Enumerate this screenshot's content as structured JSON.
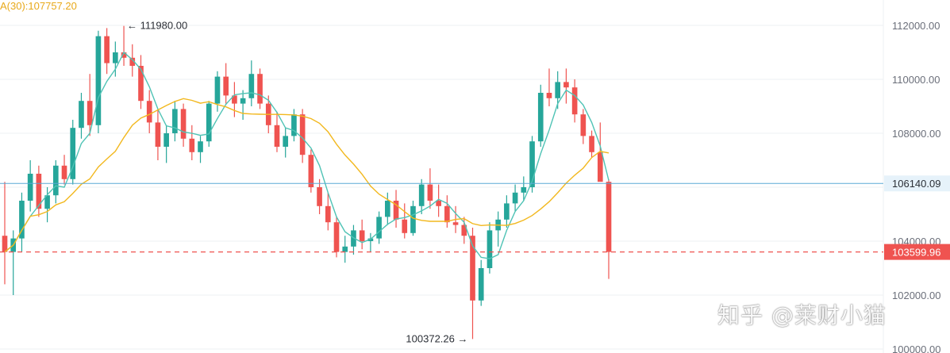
{
  "chart_data": {
    "type": "candlestick",
    "ma_label": "A(30):107757.20",
    "y_axis": {
      "ticks": [
        "112000.00",
        "110000.00",
        "108000.00",
        "106000.00",
        "104000.00",
        "102000.00",
        "100000.00"
      ],
      "tick_values": [
        112000,
        110000,
        108000,
        106000,
        104000,
        102000,
        100000
      ],
      "range": [
        100000,
        112800
      ]
    },
    "high_marker": "111980.00",
    "high_value": 111980,
    "low_marker": "100372.26",
    "low_value": 100372.26,
    "ref_line": {
      "label": "106140.09",
      "value": 106140.09
    },
    "last_price": {
      "label": "103599.96",
      "value": 103599.96
    },
    "colors": {
      "up": "#26a69a",
      "down": "#ef5350",
      "ma_fast": "#4fc3b5",
      "ma_slow": "#f2b81e",
      "ref_line": "#5aa9d6",
      "last_price": "#ef5350"
    },
    "grid": true,
    "candles_ohlc": [
      [
        104200,
        106200,
        102400,
        103600
      ],
      [
        103600,
        104400,
        102000,
        104100
      ],
      [
        104100,
        105800,
        103600,
        105500
      ],
      [
        105500,
        107000,
        105100,
        106500
      ],
      [
        106500,
        106800,
        104900,
        105200
      ],
      [
        105200,
        106000,
        104700,
        105700
      ],
      [
        105700,
        107000,
        105400,
        106800
      ],
      [
        106800,
        107200,
        106100,
        106300
      ],
      [
        106300,
        108500,
        106100,
        108200
      ],
      [
        108200,
        109500,
        107800,
        109200
      ],
      [
        109200,
        110200,
        107900,
        108300
      ],
      [
        108300,
        111800,
        108000,
        111600
      ],
      [
        111600,
        111900,
        110200,
        110600
      ],
      [
        110600,
        111400,
        110100,
        111000
      ],
      [
        111000,
        111980,
        110500,
        110800
      ],
      [
        110800,
        111300,
        110100,
        110500
      ],
      [
        110500,
        110900,
        108900,
        109200
      ],
      [
        109200,
        109600,
        108000,
        108400
      ],
      [
        108400,
        108900,
        107000,
        107500
      ],
      [
        107500,
        108300,
        106900,
        108000
      ],
      [
        108000,
        109200,
        107700,
        108900
      ],
      [
        108900,
        109100,
        107500,
        107800
      ],
      [
        107800,
        108300,
        107000,
        107300
      ],
      [
        107300,
        107900,
        106900,
        107700
      ],
      [
        107700,
        109200,
        107500,
        109100
      ],
      [
        109100,
        110300,
        108800,
        110100
      ],
      [
        110100,
        110600,
        109100,
        109400
      ],
      [
        109400,
        109900,
        108600,
        109100
      ],
      [
        109100,
        109600,
        108500,
        109300
      ],
      [
        109300,
        110700,
        109000,
        110200
      ],
      [
        110200,
        110400,
        108900,
        109100
      ],
      [
        109100,
        109400,
        108000,
        108300
      ],
      [
        108300,
        108800,
        107300,
        107500
      ],
      [
        107500,
        108200,
        107100,
        107900
      ],
      [
        107900,
        108900,
        107700,
        108700
      ],
      [
        108700,
        108900,
        106900,
        107200
      ],
      [
        107200,
        107400,
        105800,
        106000
      ],
      [
        106000,
        106300,
        105000,
        105300
      ],
      [
        105300,
        105800,
        104400,
        104700
      ],
      [
        104700,
        104900,
        103400,
        103600
      ],
      [
        103600,
        104200,
        103200,
        103800
      ],
      [
        103800,
        104600,
        103500,
        104400
      ],
      [
        104400,
        104800,
        103700,
        104000
      ],
      [
        104000,
        104300,
        103600,
        104100
      ],
      [
        104100,
        105100,
        103900,
        104900
      ],
      [
        104900,
        105800,
        104600,
        105500
      ],
      [
        105500,
        105900,
        104500,
        104800
      ],
      [
        104800,
        105400,
        104100,
        104300
      ],
      [
        104300,
        105500,
        104200,
        105300
      ],
      [
        105300,
        106300,
        105000,
        106100
      ],
      [
        106100,
        106700,
        105200,
        105500
      ],
      [
        105500,
        106100,
        104900,
        105300
      ],
      [
        105300,
        105700,
        104500,
        104700
      ],
      [
        104700,
        105300,
        104300,
        104600
      ],
      [
        104600,
        104900,
        103900,
        104200
      ],
      [
        104200,
        104500,
        100372,
        101800
      ],
      [
        101800,
        103300,
        101600,
        103000
      ],
      [
        103000,
        104700,
        102800,
        104400
      ],
      [
        104400,
        105100,
        103800,
        104800
      ],
      [
        104800,
        105700,
        104500,
        105400
      ],
      [
        105400,
        106100,
        105100,
        105800
      ],
      [
        105800,
        106400,
        105500,
        106000
      ],
      [
        106000,
        107900,
        105800,
        107700
      ],
      [
        107700,
        109800,
        107500,
        109500
      ],
      [
        109500,
        110400,
        109000,
        109300
      ],
      [
        109300,
        110300,
        108900,
        109900
      ],
      [
        109900,
        110400,
        109100,
        109700
      ],
      [
        109700,
        110000,
        108400,
        108700
      ],
      [
        108700,
        108900,
        107600,
        107900
      ],
      [
        107900,
        108100,
        107100,
        107300
      ],
      [
        107300,
        108400,
        106700,
        106200
      ],
      [
        106200,
        106300,
        102600,
        103600
      ]
    ]
  }
}
